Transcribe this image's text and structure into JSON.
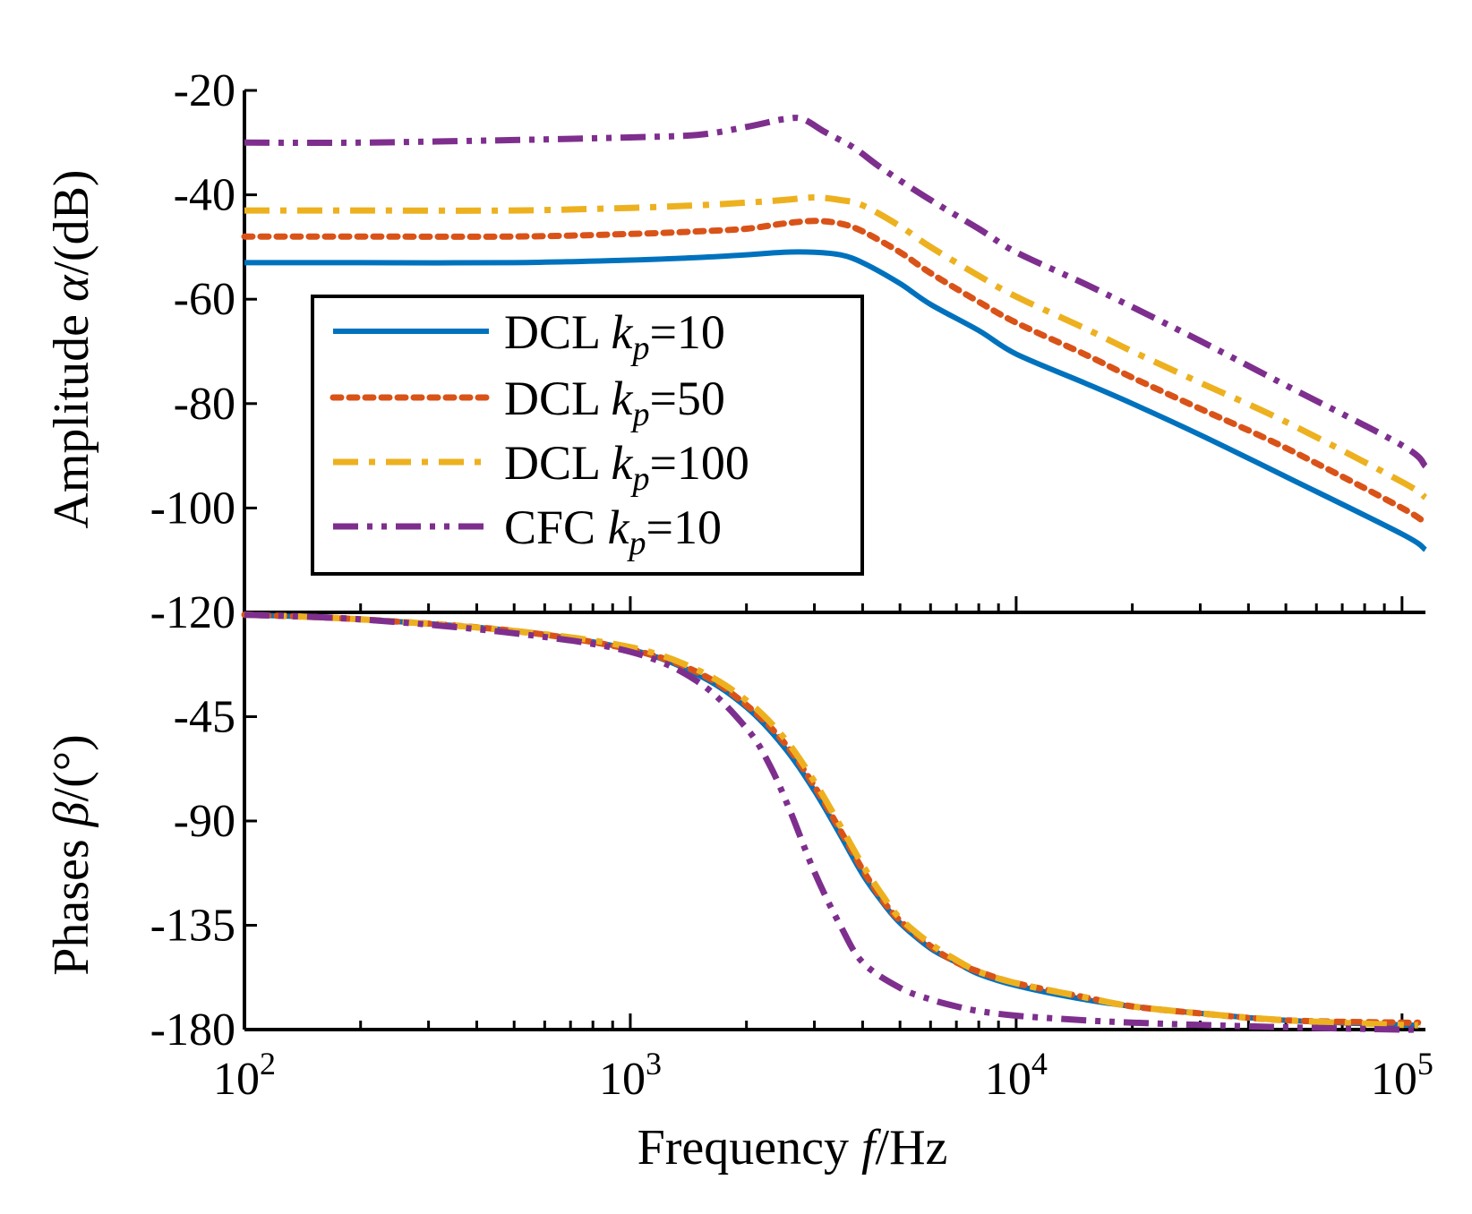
{
  "chart_data": [
    {
      "type": "line",
      "panel": "amplitude",
      "ylabel_prefix": "Amplitude ",
      "ylabel_symbol": "α",
      "ylabel_suffix": "/(dB)",
      "xscale": "log",
      "xlim": [
        100,
        115000
      ],
      "ylim": [
        -120,
        -20
      ],
      "yticks": [
        -20,
        -40,
        -60,
        -80,
        -100,
        -120
      ],
      "ytick_labels": [
        "-20",
        "-40",
        "-60",
        "-80",
        "-100",
        "-120"
      ],
      "legend_position": "center-left",
      "series": [
        {
          "name_main": "DCL ",
          "name_k": "k",
          "name_sub": "p",
          "name_val": "=10",
          "color": "#0072BD",
          "dash": "solid",
          "x": [
            100,
            200,
            500,
            1000,
            1500,
            2000,
            2500,
            3000,
            3500,
            4000,
            5000,
            6000,
            8000,
            10000,
            15000,
            20000,
            30000,
            50000,
            100000,
            115000
          ],
          "y": [
            -53,
            -53,
            -53,
            -52.5,
            -52,
            -51.5,
            -51,
            -51,
            -51.5,
            -53,
            -57,
            -61,
            -66,
            -70.5,
            -76,
            -80,
            -86,
            -94,
            -105,
            -108
          ]
        },
        {
          "name_main": "DCL ",
          "name_k": "k",
          "name_sub": "p",
          "name_val": "=50",
          "color": "#D95319",
          "dash": "dotted",
          "x": [
            100,
            200,
            500,
            1000,
            1500,
            2000,
            2500,
            3000,
            3500,
            4000,
            5000,
            6000,
            8000,
            10000,
            15000,
            20000,
            30000,
            50000,
            100000,
            115000
          ],
          "y": [
            -48,
            -48,
            -48,
            -47.5,
            -47,
            -46.5,
            -45.5,
            -45,
            -45.5,
            -47,
            -51,
            -55,
            -60.5,
            -64.5,
            -70.5,
            -75,
            -81,
            -88.5,
            -100,
            -103
          ]
        },
        {
          "name_main": "DCL ",
          "name_k": "k",
          "name_sub": "p",
          "name_val": "=100",
          "color": "#EDB120",
          "dash": "dashdot",
          "x": [
            100,
            200,
            500,
            1000,
            1500,
            2000,
            2500,
            3000,
            3500,
            4000,
            5000,
            6000,
            8000,
            10000,
            15000,
            20000,
            30000,
            50000,
            100000,
            115000
          ],
          "y": [
            -43,
            -43,
            -43,
            -42.5,
            -42,
            -41.5,
            -41,
            -40.5,
            -41,
            -42,
            -46,
            -50,
            -55.5,
            -59.5,
            -65.5,
            -70,
            -76,
            -83.5,
            -95,
            -98
          ]
        },
        {
          "name_main": "CFC ",
          "name_k": "k",
          "name_sub": "p",
          "name_val": "=10",
          "color": "#7E2F8E",
          "dash": "dashdotdot",
          "x": [
            100,
            200,
            500,
            1000,
            1500,
            2000,
            2500,
            2800,
            3200,
            3800,
            4500,
            6000,
            8000,
            10000,
            15000,
            20000,
            30000,
            50000,
            100000,
            115000
          ],
          "y": [
            -30,
            -30,
            -29.5,
            -29,
            -28.5,
            -27,
            -25.5,
            -25.5,
            -28,
            -31,
            -35,
            -41,
            -46.5,
            -51,
            -57,
            -61.5,
            -68,
            -76.5,
            -88,
            -92
          ]
        }
      ]
    },
    {
      "type": "line",
      "panel": "phase",
      "ylabel_prefix": "Phases ",
      "ylabel_symbol": "β",
      "ylabel_suffix": "/(°)",
      "xlabel_main": "Frequency ",
      "xlabel_symbol": "f",
      "xlabel_suffix": "/Hz",
      "xscale": "log",
      "xlim": [
        100,
        115000
      ],
      "ylim": [
        -180,
        0
      ],
      "yticks": [
        -45,
        -90,
        -135,
        -180
      ],
      "ytick_labels": [
        "-45",
        "-90",
        "-135",
        "-180"
      ],
      "xticks": [
        100,
        1000,
        10000,
        100000
      ],
      "xtick_base": [
        "10",
        "10",
        "10",
        "10"
      ],
      "xtick_exp": [
        "2",
        "3",
        "4",
        "5"
      ],
      "series": [
        {
          "name": "DCL kp=10",
          "color": "#0072BD",
          "dash": "solid",
          "x": [
            100,
            200,
            500,
            1000,
            1500,
            2000,
            2500,
            3000,
            3500,
            4000,
            4500,
            5000,
            6000,
            7000,
            8000,
            10000,
            15000,
            20000,
            30000,
            50000,
            100000,
            110000
          ],
          "y": [
            -1,
            -3,
            -8,
            -16,
            -27,
            -41,
            -58,
            -77,
            -96,
            -113,
            -125,
            -134,
            -145,
            -151,
            -156,
            -161,
            -167,
            -170,
            -173,
            -176,
            -178,
            -178
          ]
        },
        {
          "name": "DCL kp=50",
          "color": "#D95319",
          "dash": "dotted",
          "x": [
            100,
            200,
            500,
            1000,
            1500,
            2000,
            2500,
            3000,
            3500,
            4000,
            4500,
            5000,
            6000,
            7000,
            8000,
            10000,
            15000,
            20000,
            30000,
            50000,
            100000,
            110000
          ],
          "y": [
            -1,
            -3,
            -8,
            -16,
            -26,
            -40,
            -56,
            -75,
            -94,
            -111,
            -124,
            -133,
            -144,
            -151,
            -155,
            -160,
            -166,
            -170,
            -173,
            -176,
            -177,
            -177
          ]
        },
        {
          "name": "DCL kp=100",
          "color": "#EDB120",
          "dash": "dashdot",
          "x": [
            100,
            200,
            500,
            1000,
            1500,
            2000,
            2500,
            3000,
            3500,
            4000,
            4500,
            5000,
            6000,
            7000,
            8000,
            10000,
            15000,
            20000,
            30000,
            50000,
            100000,
            110000
          ],
          "y": [
            -1,
            -3,
            -8,
            -15,
            -25,
            -38,
            -54,
            -73,
            -92,
            -109,
            -122,
            -132,
            -143,
            -150,
            -155,
            -160,
            -166,
            -170,
            -173,
            -176,
            -178,
            -178
          ]
        },
        {
          "name": "CFC kp=10",
          "color": "#7E2F8E",
          "dash": "dashdotdot",
          "x": [
            100,
            200,
            500,
            1000,
            1500,
            2000,
            2300,
            2600,
            3000,
            3500,
            4000,
            5000,
            6000,
            7000,
            8000,
            10000,
            15000,
            20000,
            30000,
            50000,
            100000,
            110000
          ],
          "y": [
            -1,
            -3,
            -9,
            -17,
            -30,
            -50,
            -66,
            -86,
            -112,
            -135,
            -151,
            -162,
            -167,
            -170,
            -172,
            -174,
            -176,
            -177,
            -178,
            -179,
            -180,
            -180
          ]
        }
      ]
    }
  ]
}
